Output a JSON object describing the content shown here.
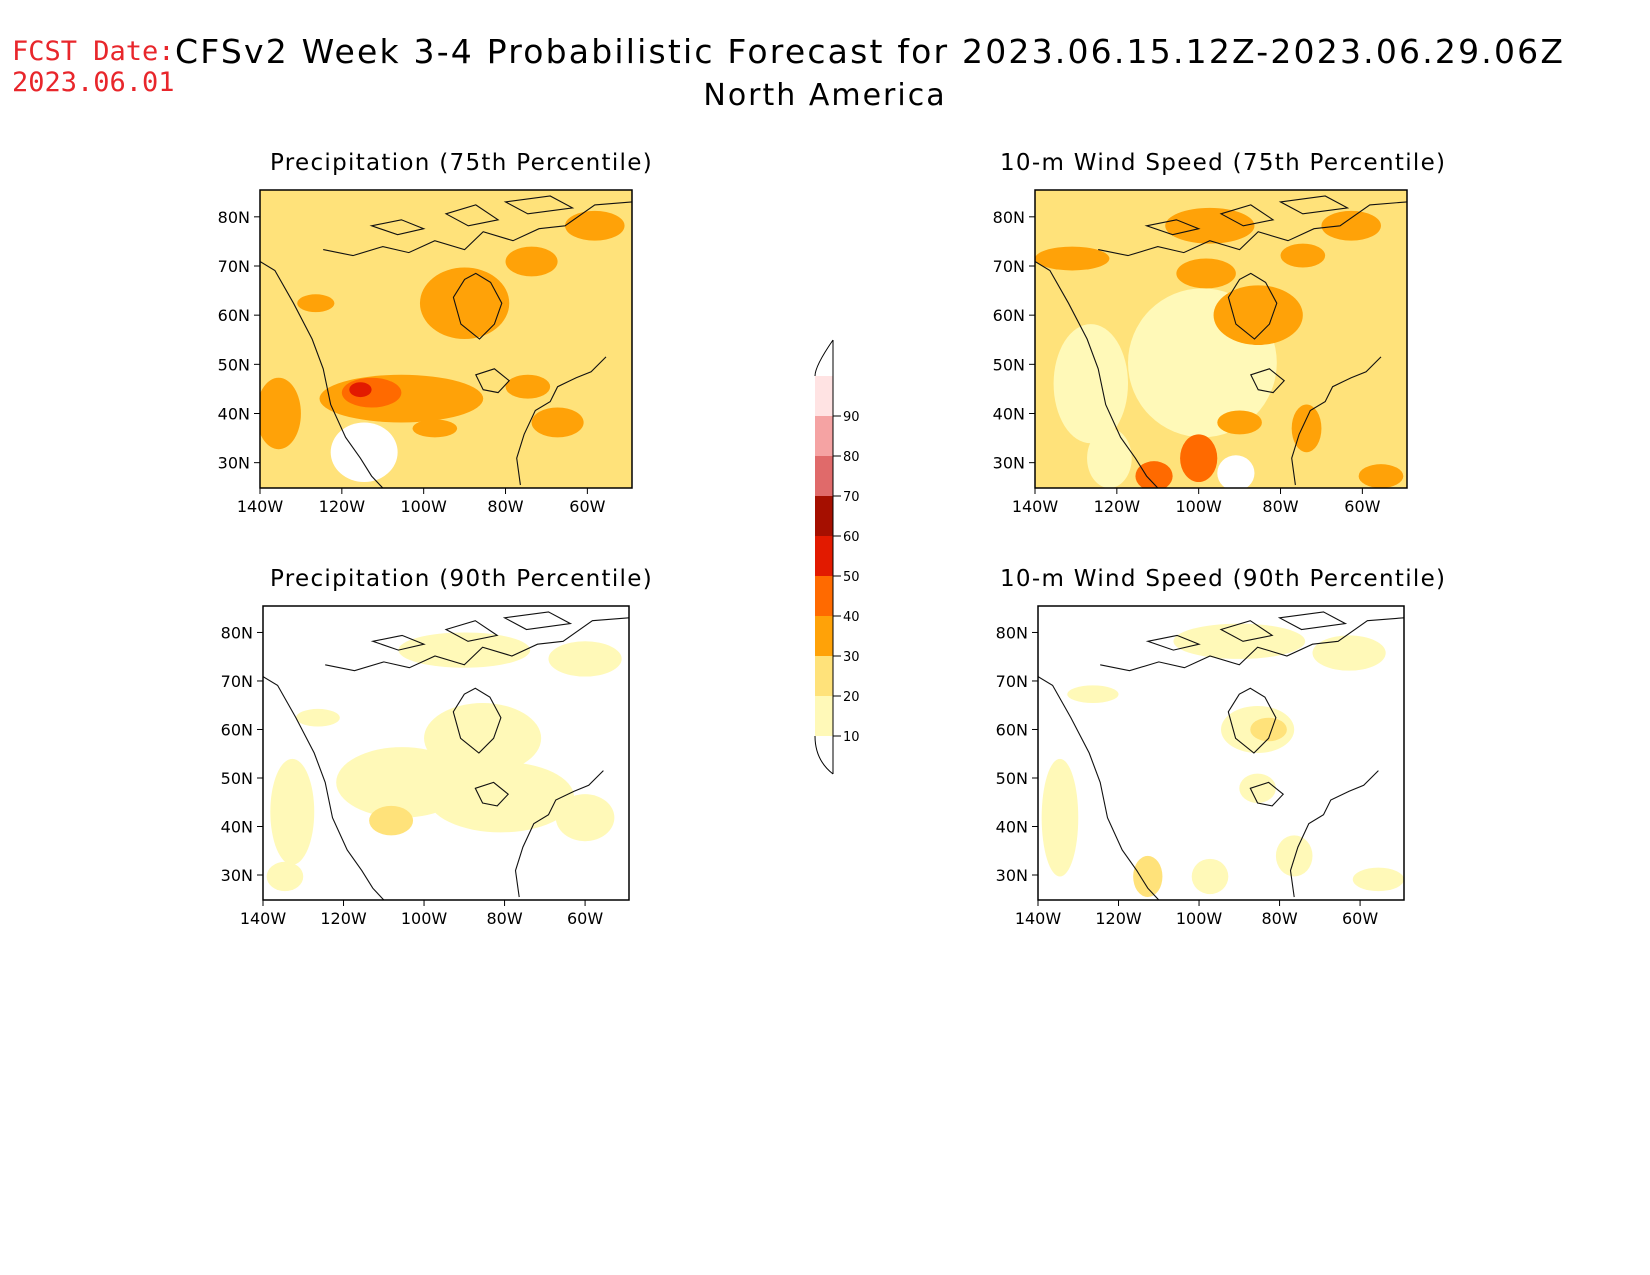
{
  "header": {
    "fcst_label": "FCST Date:",
    "fcst_date": "2023.06.01",
    "title": "CFSv2 Week 3-4 Probabilistic Forecast for 2023.06.15.12Z-2023.06.29.06Z",
    "region": "North America"
  },
  "panels": [
    {
      "id": "precip-75",
      "title": "Precipitation (75th Percentile)"
    },
    {
      "id": "wind-75",
      "title": "10-m Wind Speed (75th Percentile)"
    },
    {
      "id": "precip-90",
      "title": "Precipitation (90th Percentile)"
    },
    {
      "id": "wind-90",
      "title": "10-m Wind Speed (90th Percentile)"
    }
  ],
  "axes": {
    "lat_ticks": [
      "80N",
      "70N",
      "60N",
      "50N",
      "40N",
      "30N"
    ],
    "lon_ticks": [
      "140W",
      "120W",
      "100W",
      "80W",
      "60W"
    ]
  },
  "colorbar": {
    "levels": [
      "10",
      "20",
      "30",
      "40",
      "50",
      "60",
      "70",
      "80",
      "90"
    ],
    "colors": [
      "#fff9b8",
      "#ffe27a",
      "#ffa208",
      "#ff6a00",
      "#e21a00",
      "#a50f00",
      "#e06a6a",
      "#f5a3a3",
      "#ffe3e3"
    ]
  }
}
